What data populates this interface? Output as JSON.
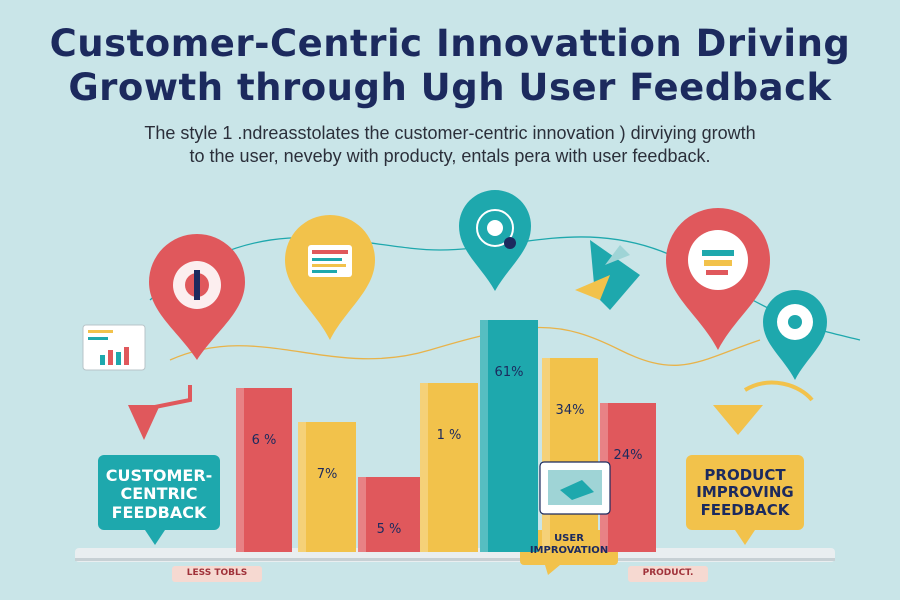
{
  "title": {
    "line1": "Customer-Centric  Innovattion   Driving",
    "line2": "Growth through  Ugh User Feedback"
  },
  "subtitle": {
    "line1": "The style 1 .ndreasstolates the customer-centric innovation ) dirviying growth",
    "line2": "to the user, neveby with producty, entals pera  with  user feedback."
  },
  "bars": [
    {
      "label": "6 %",
      "color": "#e0585c"
    },
    {
      "label": "7%",
      "color": "#f2c24b"
    },
    {
      "label": "5 %",
      "color": "#e0585c"
    },
    {
      "label": "1 %",
      "color": "#f2c24b"
    },
    {
      "label": "61%",
      "color": "#1ea8ad"
    },
    {
      "label": "34%",
      "color": "#f2c24b"
    },
    {
      "label": "24%",
      "color": "#e0585c"
    }
  ],
  "callouts": {
    "left": "CUSTOMER-\nCENTRIC\nFEEDBACK",
    "right": "PRODUCT\nIMPROVING\nFEEDBACK",
    "center": "USER\nIMPROVATION"
  },
  "bottom_tags": {
    "left": "LESS TOBLS",
    "right": "PRODUCT."
  },
  "colors": {
    "background": "#c9e5e8",
    "navy": "#1c2a5e",
    "red": "#e0585c",
    "yellow": "#f2c24b",
    "teal": "#1ea8ad"
  },
  "icons": [
    "idea-icon",
    "dashboard-icon",
    "target-icon",
    "rocket-icon",
    "chat-icon",
    "gear-icon",
    "chart-icon"
  ]
}
